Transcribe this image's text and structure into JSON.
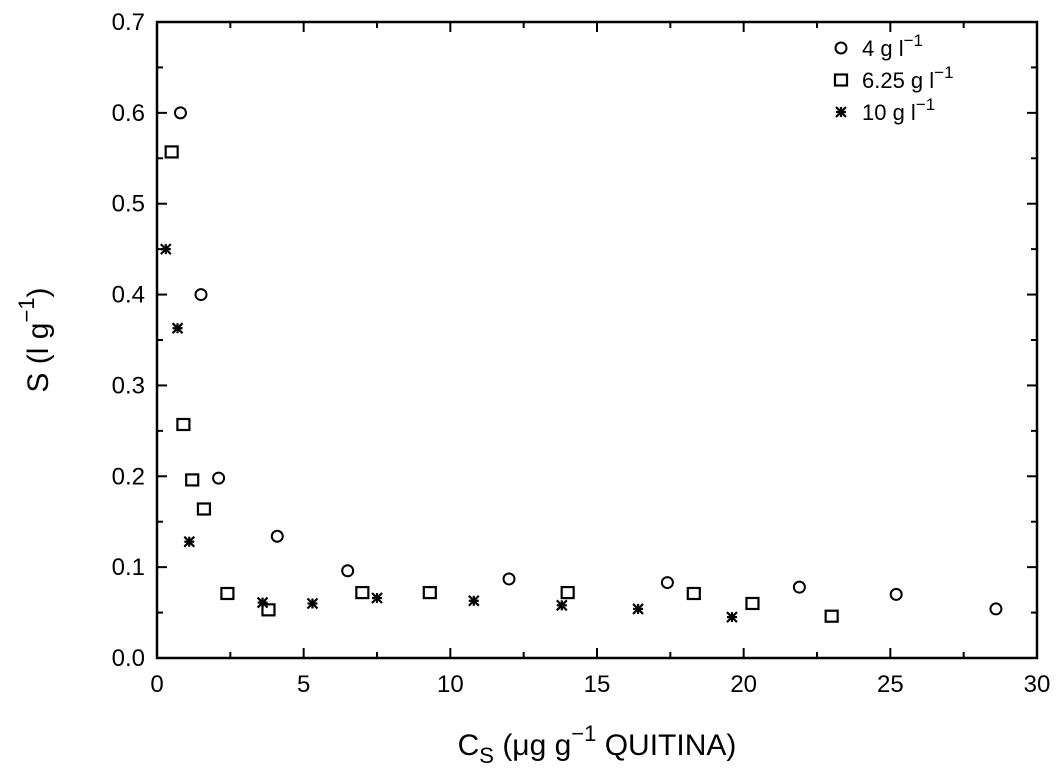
{
  "chart_data": {
    "type": "scatter",
    "title": "",
    "xlabel": {
      "base": "C",
      "sub": "S",
      "pre": "(μg g",
      "sup": "−1",
      "post": " QUITINA)"
    },
    "ylabel": {
      "pre": "S (l g",
      "sup": "−1",
      "post": ")"
    },
    "xlim": [
      0,
      30
    ],
    "ylim": [
      0,
      0.7
    ],
    "xticks": [
      0,
      5,
      10,
      15,
      20,
      25,
      30
    ],
    "yticks": [
      0.0,
      0.1,
      0.2,
      0.3,
      0.4,
      0.5,
      0.6,
      0.7
    ],
    "xtick_labels": [
      "0",
      "5",
      "10",
      "15",
      "20",
      "25",
      "30"
    ],
    "ytick_labels": [
      "0.0",
      "0.1",
      "0.2",
      "0.3",
      "0.4",
      "0.5",
      "0.6",
      "0.7"
    ],
    "grid": false,
    "legend_position": "top-right",
    "series": [
      {
        "name": "4 g l",
        "name_sup": "−1",
        "marker": "circle",
        "points": [
          [
            0.8,
            0.6
          ],
          [
            1.5,
            0.4
          ],
          [
            2.1,
            0.198
          ],
          [
            4.1,
            0.134
          ],
          [
            6.5,
            0.096
          ],
          [
            12.0,
            0.087
          ],
          [
            17.4,
            0.083
          ],
          [
            21.9,
            0.078
          ],
          [
            25.2,
            0.07
          ],
          [
            28.6,
            0.054
          ]
        ]
      },
      {
        "name": "6.25 g l",
        "name_sup": "−1",
        "marker": "square",
        "points": [
          [
            0.5,
            0.557
          ],
          [
            0.9,
            0.257
          ],
          [
            1.2,
            0.196
          ],
          [
            1.6,
            0.164
          ],
          [
            2.4,
            0.071
          ],
          [
            3.8,
            0.053
          ],
          [
            7.0,
            0.072
          ],
          [
            9.3,
            0.072
          ],
          [
            14.0,
            0.072
          ],
          [
            18.3,
            0.071
          ],
          [
            20.3,
            0.06
          ],
          [
            23.0,
            0.046
          ]
        ]
      },
      {
        "name": "10 g l",
        "name_sup": "−1",
        "marker": "asterisk",
        "points": [
          [
            0.3,
            0.45
          ],
          [
            0.7,
            0.363
          ],
          [
            1.1,
            0.128
          ],
          [
            3.6,
            0.061
          ],
          [
            5.3,
            0.06
          ],
          [
            7.5,
            0.066
          ],
          [
            10.8,
            0.063
          ],
          [
            13.8,
            0.058
          ],
          [
            16.4,
            0.054
          ],
          [
            19.6,
            0.045
          ]
        ]
      }
    ]
  }
}
